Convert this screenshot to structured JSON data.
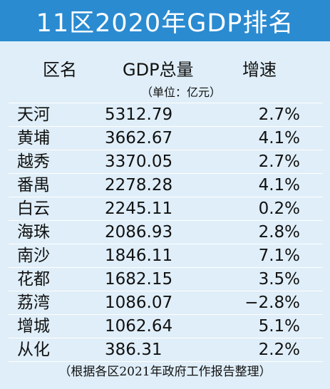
{
  "title": "11区2020年GDP排名",
  "headers": {
    "district": "区名",
    "gdp": "GDP总量",
    "growth": "增速"
  },
  "unit": "（单位：亿元）",
  "rows": [
    {
      "district": "天河",
      "gdp": "5312.79",
      "growth": "2.7%"
    },
    {
      "district": "黄埔",
      "gdp": "3662.67",
      "growth": "4.1%"
    },
    {
      "district": "越秀",
      "gdp": "3370.05",
      "growth": "2.7%"
    },
    {
      "district": "番禺",
      "gdp": "2278.28",
      "growth": "4.1%"
    },
    {
      "district": "白云",
      "gdp": "2245.11",
      "growth": "0.2%"
    },
    {
      "district": "海珠",
      "gdp": "2086.93",
      "growth": "2.8%"
    },
    {
      "district": "南沙",
      "gdp": "1846.11",
      "growth": "7.1%"
    },
    {
      "district": "花都",
      "gdp": "1682.15",
      "growth": "3.5%"
    },
    {
      "district": "荔湾",
      "gdp": "1086.07",
      "growth": "−2.8%"
    },
    {
      "district": "增城",
      "gdp": "1062.64",
      "growth": "5.1%"
    },
    {
      "district": "从化",
      "gdp": "386.31",
      "growth": "2.2%"
    }
  ],
  "footnote": "（根据各区2021年政府工作报告整理）",
  "colors": {
    "banner": "#2a8bd1",
    "background": "#dfeef8",
    "row_divider": "#ffffff"
  }
}
